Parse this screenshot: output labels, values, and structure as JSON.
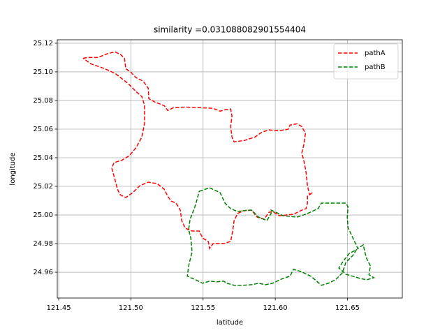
{
  "chart_data": {
    "type": "line",
    "title": "similarity =0.031088082901554404",
    "x_label": "latitude",
    "y_label": "longitude",
    "xlim": [
      121.449,
      121.688
    ],
    "ylim": [
      24.942,
      25.1224
    ],
    "xticks": [
      121.45,
      {
        "value": 121.5,
        "label": "121.50"
      },
      121.55,
      {
        "value": 121.6,
        "label": "121.60"
      },
      121.65
    ],
    "yticks": [
      {
        "value": 24.96,
        "label": "24.96"
      },
      24.98,
      {
        "value": 25.0,
        "label": "25.00"
      },
      25.02,
      25.04,
      25.06,
      25.08,
      {
        "value": 25.1,
        "label": "25.10"
      },
      25.12
    ],
    "grid": true,
    "legend": "upper right",
    "series": [
      {
        "name": "pathA",
        "color": "#ff0000",
        "x": [
          121.4669,
          121.4698,
          121.4771,
          121.4844,
          121.4892,
          121.4931,
          121.4955,
          121.4965,
          121.4999,
          121.5037,
          121.5086,
          121.512,
          121.5124,
          121.5168,
          121.5231,
          121.5255,
          121.5294,
          121.5376,
          121.5497,
          121.557,
          121.5618,
          121.5652,
          121.5691,
          121.57,
          121.5691,
          121.57,
          121.5715,
          121.5787,
          121.586,
          121.5908,
          121.5957,
          121.6029,
          121.6088,
          121.6102,
          121.615,
          121.6184,
          121.6209,
          121.6199,
          121.6184,
          121.6199,
          121.6213,
          121.6223,
          121.6238,
          121.6257,
          121.6223,
          121.6223,
          121.6213,
          121.6184,
          121.6126,
          121.6029,
          121.5981,
          121.5957,
          121.5923,
          121.5875,
          121.5836,
          121.5778,
          121.5739,
          121.5715,
          121.5705,
          121.5691,
          121.5642,
          121.557,
          121.5545,
          121.5536,
          121.5497,
          121.5473,
          121.5424,
          121.5376,
          121.5352,
          121.5342,
          121.5313,
          121.5279,
          121.5255,
          121.5231,
          121.5182,
          121.512,
          121.5061,
          121.5013,
          121.4965,
          121.4926,
          121.4907,
          121.4892,
          121.4868,
          121.4882,
          121.494,
          121.4989,
          121.5037,
          121.5076,
          121.5095,
          121.5095,
          121.5076,
          121.5037,
          121.4979,
          121.4892,
          121.4819,
          121.4723,
          121.4669
        ],
        "values": [
          25.1095,
          25.11,
          25.11,
          25.1129,
          25.1139,
          25.1119,
          25.1095,
          25.1022,
          25.0998,
          25.0959,
          25.0934,
          25.0886,
          25.0813,
          25.0788,
          25.0764,
          25.073,
          25.0749,
          25.0754,
          25.0749,
          25.0745,
          25.0725,
          25.0735,
          25.074,
          25.0691,
          25.0618,
          25.0545,
          25.0511,
          25.0521,
          25.0545,
          25.0579,
          25.0594,
          25.0589,
          25.0599,
          25.0628,
          25.0637,
          25.0618,
          25.0569,
          25.0496,
          25.0433,
          25.0375,
          25.0302,
          25.0204,
          25.0141,
          25.0156,
          25.0131,
          25.0083,
          25.0044,
          25.0034,
          25.0005,
          24.9995,
          25.0024,
          25.0019,
          24.9971,
          24.9985,
          25.0034,
          25.0029,
          25.001,
          24.9961,
          24.9888,
          24.9815,
          24.98,
          24.98,
          24.9766,
          24.9815,
          24.9839,
          24.9888,
          24.9888,
          24.9908,
          24.9961,
          25.0034,
          25.0083,
          25.0097,
          25.0131,
          25.018,
          25.0219,
          25.0229,
          25.0204,
          25.0156,
          25.0122,
          25.0141,
          25.018,
          25.0238,
          25.0326,
          25.0365,
          25.0384,
          25.0414,
          25.0472,
          25.0545,
          25.0642,
          25.0764,
          25.0827,
          25.0861,
          25.092,
          25.0988,
          25.1022,
          25.1056,
          25.1095
        ]
      },
      {
        "name": "pathB",
        "color": "#008000",
        "x": [
          121.5473,
          121.5545,
          121.5618,
          121.5652,
          121.5691,
          121.5739,
          121.5812,
          121.5836,
          121.586,
          121.5884,
          121.5942,
          121.5971,
          121.5971,
          121.6005,
          121.6054,
          121.615,
          121.6223,
          121.6296,
          121.632,
          121.6392,
          121.6489,
          121.6504,
          121.6499,
          121.6504,
          121.6538,
          121.6572,
          121.661,
          121.662,
          121.6634,
          121.6659,
          121.6649,
          121.6683,
          121.6634,
          121.6586,
          121.6538,
          121.6489,
          121.6441,
          121.6465,
          121.6513,
          121.6562,
          121.6538,
          121.6489,
          121.6465,
          121.6417,
          121.6368,
          121.632,
          121.6247,
          121.6175,
          121.6126,
          121.6102,
          121.6054,
          121.5981,
          121.5933,
          121.5884,
          121.5836,
          121.5778,
          121.5715,
          121.5666,
          121.5642,
          121.5594,
          121.5545,
          121.5497,
          121.5449,
          121.5391,
          121.54,
          121.5424,
          121.5415,
          121.54,
          121.541,
          121.5439,
          121.5458,
          121.5473
        ],
        "values": [
          25.0165,
          25.019,
          25.0156,
          25.0083,
          25.0044,
          25.0024,
          25.0034,
          25.0034,
          25.001,
          24.9985,
          24.9961,
          25.001,
          25.0034,
          25.0019,
          24.9995,
          24.9985,
          25.001,
          25.0044,
          25.0083,
          25.0083,
          25.0083,
          25.0058,
          24.9985,
          24.9912,
          24.9839,
          24.9766,
          24.9791,
          24.9742,
          24.9693,
          24.9645,
          24.9582,
          24.9562,
          24.9547,
          24.9557,
          24.9572,
          24.9586,
          24.963,
          24.9669,
          24.9732,
          24.9757,
          24.9718,
          24.9669,
          24.9596,
          24.9547,
          24.9523,
          24.9509,
          24.9572,
          24.9606,
          24.962,
          24.9572,
          24.9557,
          24.9523,
          24.9513,
          24.9523,
          24.9513,
          24.9509,
          24.9509,
          24.9523,
          24.9538,
          24.9533,
          24.9538,
          24.9523,
          24.9547,
          24.9572,
          24.9645,
          24.9742,
          24.9839,
          24.9898,
          24.9971,
          25.0044,
          25.0107,
          25.0165
        ]
      }
    ]
  }
}
